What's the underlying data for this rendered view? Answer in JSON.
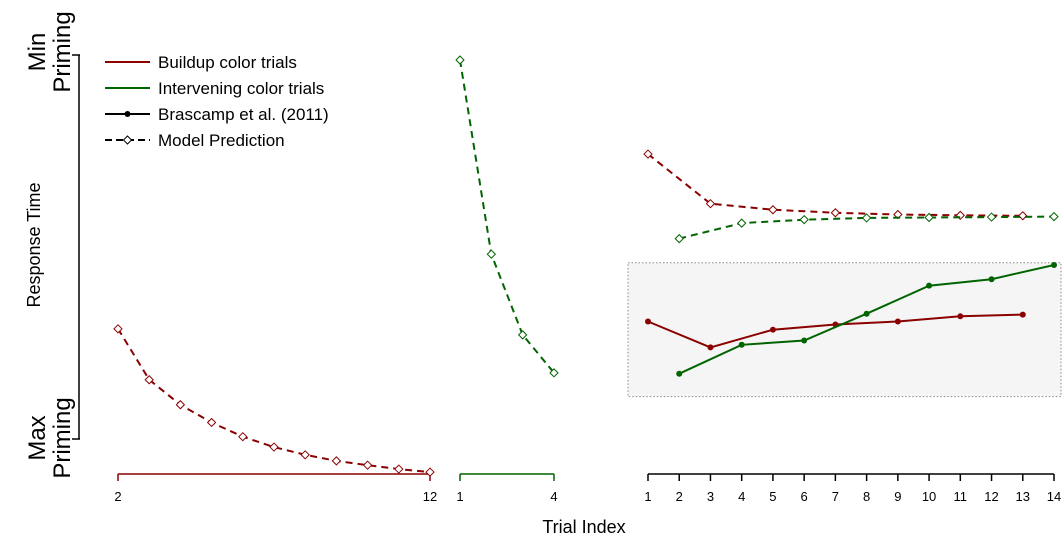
{
  "chart_data": {
    "type": "line",
    "xlabel": "Trial Index",
    "ylabel": "Response Time",
    "y_top_label": [
      "Min",
      "Priming"
    ],
    "y_bottom_label": [
      "Max",
      "Priming"
    ],
    "legend": {
      "placement": "top-left",
      "entries": [
        {
          "label": "Buildup color trials",
          "color": "#8B0000",
          "style": "solid"
        },
        {
          "label": "Intervening color trials",
          "color": "#006400",
          "style": "solid"
        },
        {
          "label": "Brascamp et al. (2011)",
          "color": "#000000",
          "style": "solid-dot"
        },
        {
          "label": "Model Prediction",
          "color": "#000000",
          "style": "dashed-diamond"
        }
      ]
    },
    "panels": [
      {
        "id": "buildup-panel",
        "axis_color": "#8B0000",
        "xlim": [
          2,
          12
        ],
        "tick_labels": [
          "2",
          "12"
        ],
        "series": [
          {
            "kind": "model",
            "color": "#8B0000",
            "x": [
              2,
              3,
              4,
              5,
              6,
              7,
              8,
              9,
              10,
              11,
              12
            ],
            "y": [
              0.377,
              0.259,
              0.201,
              0.16,
              0.127,
              0.103,
              0.085,
              0.071,
              0.061,
              0.052,
              0.045
            ]
          }
        ]
      },
      {
        "id": "intervening-panel",
        "axis_color": "#006400",
        "xlim": [
          1,
          4
        ],
        "tick_labels": [
          "1",
          "4"
        ],
        "series": [
          {
            "kind": "model",
            "color": "#006400",
            "x": [
              1,
              2,
              3,
              4
            ],
            "y": [
              1.0,
              0.55,
              0.363,
              0.275
            ]
          }
        ]
      },
      {
        "id": "brascamp-panel",
        "axis_color": "#000000",
        "xlim": [
          1,
          14
        ],
        "tick_labels": [
          "1",
          "2",
          "3",
          "4",
          "5",
          "6",
          "7",
          "8",
          "9",
          "10",
          "11",
          "12",
          "13",
          "14"
        ],
        "highlight_region": {
          "y": [
            0.22,
            0.53
          ]
        },
        "series": [
          {
            "kind": "model",
            "color": "#8B0000",
            "x": [
              1,
              3,
              5,
              7,
              9,
              11,
              13
            ],
            "y": [
              0.782,
              0.667,
              0.653,
              0.646,
              0.642,
              0.64,
              0.639
            ]
          },
          {
            "kind": "model",
            "color": "#006400",
            "x": [
              2,
              4,
              6,
              8,
              10,
              12,
              14
            ],
            "y": [
              0.586,
              0.622,
              0.63,
              0.634,
              0.635,
              0.636,
              0.637
            ]
          },
          {
            "kind": "data",
            "color": "#8B0000",
            "x": [
              1,
              3,
              5,
              7,
              9,
              11,
              13
            ],
            "y": [
              0.394,
              0.334,
              0.375,
              0.387,
              0.394,
              0.406,
              0.41
            ]
          },
          {
            "kind": "data",
            "color": "#006400",
            "x": [
              2,
              4,
              6,
              8,
              10,
              12,
              14
            ],
            "y": [
              0.273,
              0.34,
              0.35,
              0.412,
              0.477,
              0.492,
              0.525
            ]
          }
        ]
      }
    ]
  }
}
